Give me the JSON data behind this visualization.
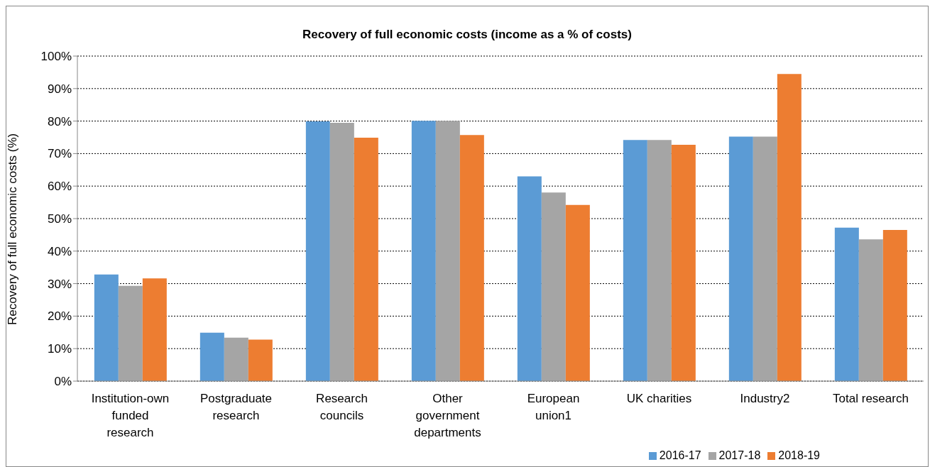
{
  "chart_data": {
    "type": "bar",
    "title": "Recovery of full economic costs (income as a % of costs)",
    "ylabel": "Recovery of full economic costs (%)",
    "categories": [
      "Institution-own funded research",
      "Postgraduate research",
      "Research councils",
      "Other government departments",
      "European union1",
      "UK charities",
      "Industry2",
      "Total research"
    ],
    "series": [
      {
        "name": "2016-17",
        "color": "#5b9bd5",
        "values": [
          32.8,
          14.9,
          79.9,
          80.1,
          63.0,
          74.2,
          75.2,
          47.2
        ]
      },
      {
        "name": "2017-18",
        "color": "#a5a5a5",
        "values": [
          29.3,
          13.4,
          79.5,
          80.1,
          58.0,
          74.2,
          75.2,
          43.6
        ]
      },
      {
        "name": "2018-19",
        "color": "#ed7d31",
        "values": [
          31.6,
          12.8,
          74.9,
          75.7,
          54.2,
          72.7,
          94.5,
          46.5
        ]
      }
    ],
    "ylim": [
      0,
      100
    ],
    "yticks": [
      {
        "value": 0,
        "label": "0%"
      },
      {
        "value": 10,
        "label": "10%"
      },
      {
        "value": 20,
        "label": "20%"
      },
      {
        "value": 30,
        "label": "30%"
      },
      {
        "value": 40,
        "label": "40%"
      },
      {
        "value": 50,
        "label": "50%"
      },
      {
        "value": 60,
        "label": "60%"
      },
      {
        "value": 70,
        "label": "70%"
      },
      {
        "value": 80,
        "label": "80%"
      },
      {
        "value": 90,
        "label": "90%"
      },
      {
        "value": 100,
        "label": "100%"
      }
    ],
    "grid": "y",
    "legend": "bottom right"
  }
}
